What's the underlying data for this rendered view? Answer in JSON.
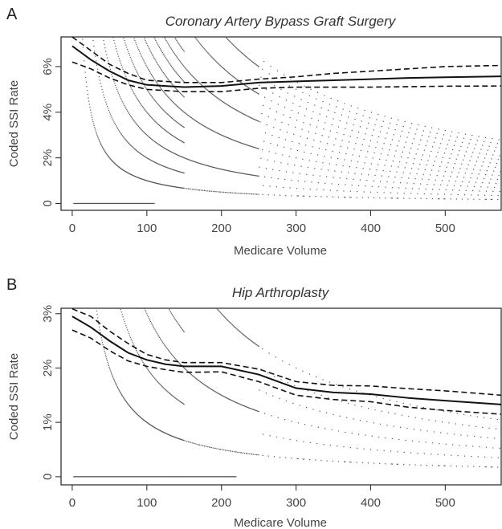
{
  "chart_data": [
    {
      "type": "scatter",
      "panel_label": "A",
      "title": "Coronary Artery Bypass Graft Surgery",
      "xlabel": "Medicare Volume",
      "ylabel": "Coded SSI Rate",
      "xlim": [
        -15,
        575
      ],
      "ylim": [
        -0.003,
        0.073
      ],
      "x_ticks": [
        0,
        100,
        200,
        300,
        400,
        500
      ],
      "x_tick_labels": [
        "0",
        "100",
        "200",
        "300",
        "400",
        "500"
      ],
      "y_ticks": [
        0,
        0.02,
        0.04,
        0.06
      ],
      "y_tick_labels": [
        "0",
        "2%",
        "4%",
        "6%"
      ],
      "series": [
        {
          "style": "points",
          "note_counts": [
            0,
            1,
            2,
            3,
            4,
            5,
            6,
            7,
            8,
            9,
            10,
            11,
            12,
            13,
            14,
            15,
            16
          ],
          "x_range": [
            2,
            575
          ]
        },
        {
          "style": "solid-line",
          "x": [
            0,
            25,
            50,
            75,
            100,
            125,
            150,
            200,
            250,
            300,
            350,
            400,
            450,
            500,
            575
          ],
          "y": [
            0.069,
            0.063,
            0.058,
            0.054,
            0.052,
            0.0515,
            0.051,
            0.0515,
            0.053,
            0.0535,
            0.054,
            0.0545,
            0.055,
            0.0553,
            0.0557
          ]
        },
        {
          "style": "dashed-line",
          "x": [
            0,
            25,
            50,
            75,
            100,
            150,
            200,
            250,
            300,
            350,
            400,
            450,
            500,
            575
          ],
          "y": [
            0.073,
            0.067,
            0.061,
            0.057,
            0.054,
            0.053,
            0.053,
            0.0545,
            0.0555,
            0.057,
            0.058,
            0.059,
            0.06,
            0.0605
          ]
        },
        {
          "style": "dashed-line",
          "x": [
            0,
            25,
            50,
            75,
            100,
            150,
            200,
            250,
            300,
            350,
            400,
            450,
            500,
            575
          ],
          "y": [
            0.062,
            0.059,
            0.055,
            0.052,
            0.05,
            0.049,
            0.049,
            0.0505,
            0.051,
            0.051,
            0.051,
            0.0512,
            0.0514,
            0.0515
          ]
        }
      ]
    },
    {
      "type": "scatter",
      "panel_label": "B",
      "title": "Hip Arthroplasty",
      "xlabel": "Medicare Volume",
      "ylabel": "Coded SSI Rate",
      "xlim": [
        -15,
        575
      ],
      "ylim": [
        -0.0015,
        0.031
      ],
      "x_ticks": [
        0,
        100,
        200,
        300,
        400,
        500
      ],
      "x_tick_labels": [
        "0",
        "100",
        "200",
        "300",
        "400",
        "500"
      ],
      "y_ticks": [
        0,
        0.01,
        0.02,
        0.03
      ],
      "y_tick_labels": [
        "0",
        "1%",
        "2%",
        "3%"
      ],
      "series": [
        {
          "style": "points",
          "note_counts": [
            0,
            1,
            2,
            3,
            4,
            5,
            6
          ],
          "x_range": [
            2,
            575
          ]
        },
        {
          "style": "solid-line",
          "x": [
            0,
            25,
            50,
            75,
            100,
            125,
            150,
            200,
            250,
            300,
            350,
            400,
            450,
            500,
            575
          ],
          "y": [
            0.0295,
            0.0275,
            0.025,
            0.0228,
            0.0215,
            0.0207,
            0.0203,
            0.0203,
            0.0188,
            0.0163,
            0.0155,
            0.0152,
            0.0145,
            0.014,
            0.0133
          ]
        },
        {
          "style": "dashed-line",
          "x": [
            0,
            25,
            50,
            75,
            100,
            125,
            150,
            200,
            250,
            300,
            350,
            400,
            450,
            500,
            575
          ],
          "y": [
            0.0309,
            0.0295,
            0.0268,
            0.0245,
            0.0225,
            0.0215,
            0.021,
            0.021,
            0.0198,
            0.0175,
            0.0168,
            0.0167,
            0.0162,
            0.0158,
            0.015
          ]
        },
        {
          "style": "dashed-line",
          "x": [
            0,
            25,
            50,
            75,
            100,
            125,
            150,
            200,
            250,
            300,
            350,
            400,
            450,
            500,
            575
          ],
          "y": [
            0.027,
            0.0255,
            0.0232,
            0.0213,
            0.0203,
            0.0197,
            0.0192,
            0.0193,
            0.0175,
            0.015,
            0.0142,
            0.0138,
            0.0128,
            0.0122,
            0.0115
          ]
        }
      ]
    }
  ]
}
